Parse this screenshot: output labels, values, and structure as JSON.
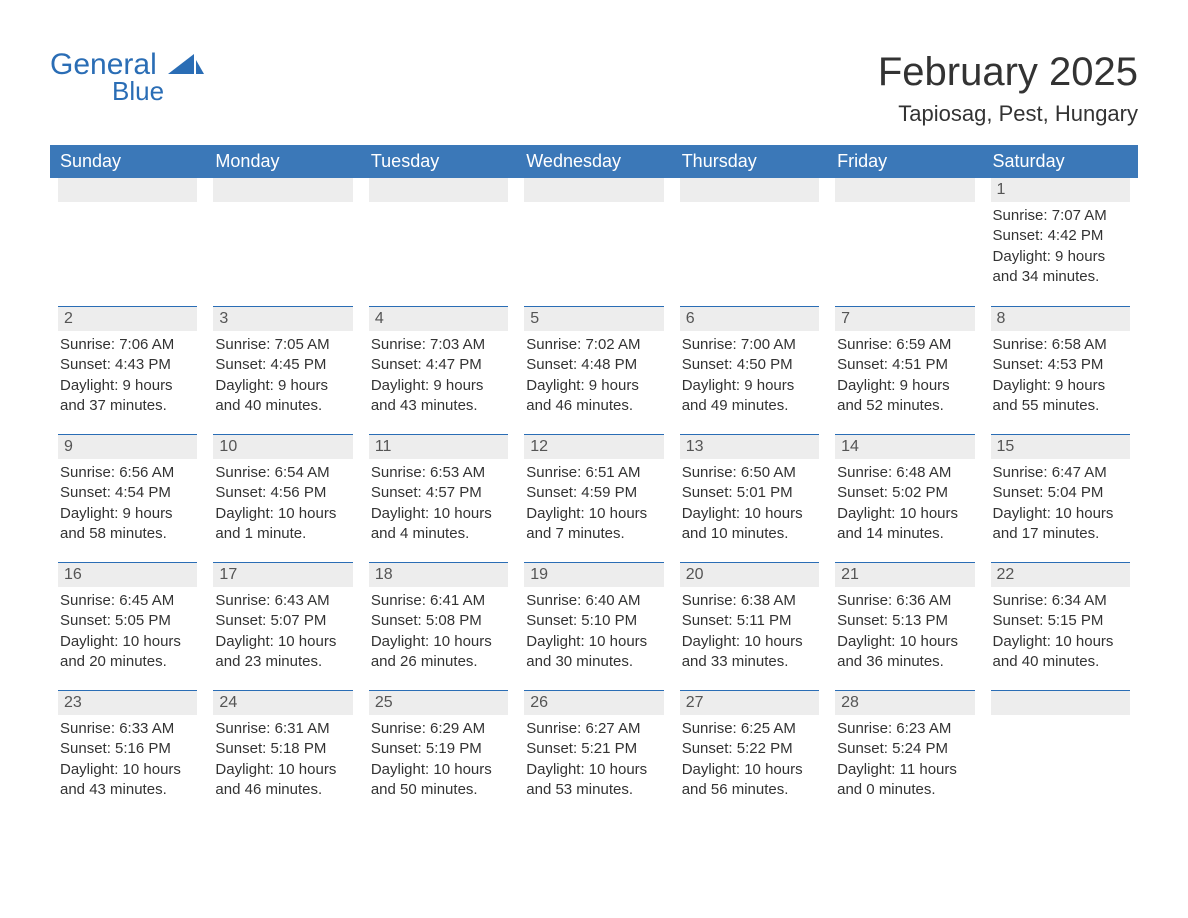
{
  "logo": {
    "text1": "General",
    "text2": "Blue",
    "sail_color": "#2a6db5"
  },
  "title": "February 2025",
  "location": "Tapiosag, Pest, Hungary",
  "colors": {
    "header_bg": "#3b78b8",
    "header_text": "#ffffff",
    "day_bar_bg": "#ededed",
    "day_bar_border": "#2a6db5",
    "text": "#333333",
    "background": "#ffffff"
  },
  "weekdays": [
    "Sunday",
    "Monday",
    "Tuesday",
    "Wednesday",
    "Thursday",
    "Friday",
    "Saturday"
  ],
  "leading_blanks": 6,
  "days": [
    {
      "n": 1,
      "sunrise": "7:07 AM",
      "sunset": "4:42 PM",
      "daylight": "9 hours and 34 minutes."
    },
    {
      "n": 2,
      "sunrise": "7:06 AM",
      "sunset": "4:43 PM",
      "daylight": "9 hours and 37 minutes."
    },
    {
      "n": 3,
      "sunrise": "7:05 AM",
      "sunset": "4:45 PM",
      "daylight": "9 hours and 40 minutes."
    },
    {
      "n": 4,
      "sunrise": "7:03 AM",
      "sunset": "4:47 PM",
      "daylight": "9 hours and 43 minutes."
    },
    {
      "n": 5,
      "sunrise": "7:02 AM",
      "sunset": "4:48 PM",
      "daylight": "9 hours and 46 minutes."
    },
    {
      "n": 6,
      "sunrise": "7:00 AM",
      "sunset": "4:50 PM",
      "daylight": "9 hours and 49 minutes."
    },
    {
      "n": 7,
      "sunrise": "6:59 AM",
      "sunset": "4:51 PM",
      "daylight": "9 hours and 52 minutes."
    },
    {
      "n": 8,
      "sunrise": "6:58 AM",
      "sunset": "4:53 PM",
      "daylight": "9 hours and 55 minutes."
    },
    {
      "n": 9,
      "sunrise": "6:56 AM",
      "sunset": "4:54 PM",
      "daylight": "9 hours and 58 minutes."
    },
    {
      "n": 10,
      "sunrise": "6:54 AM",
      "sunset": "4:56 PM",
      "daylight": "10 hours and 1 minute."
    },
    {
      "n": 11,
      "sunrise": "6:53 AM",
      "sunset": "4:57 PM",
      "daylight": "10 hours and 4 minutes."
    },
    {
      "n": 12,
      "sunrise": "6:51 AM",
      "sunset": "4:59 PM",
      "daylight": "10 hours and 7 minutes."
    },
    {
      "n": 13,
      "sunrise": "6:50 AM",
      "sunset": "5:01 PM",
      "daylight": "10 hours and 10 minutes."
    },
    {
      "n": 14,
      "sunrise": "6:48 AM",
      "sunset": "5:02 PM",
      "daylight": "10 hours and 14 minutes."
    },
    {
      "n": 15,
      "sunrise": "6:47 AM",
      "sunset": "5:04 PM",
      "daylight": "10 hours and 17 minutes."
    },
    {
      "n": 16,
      "sunrise": "6:45 AM",
      "sunset": "5:05 PM",
      "daylight": "10 hours and 20 minutes."
    },
    {
      "n": 17,
      "sunrise": "6:43 AM",
      "sunset": "5:07 PM",
      "daylight": "10 hours and 23 minutes."
    },
    {
      "n": 18,
      "sunrise": "6:41 AM",
      "sunset": "5:08 PM",
      "daylight": "10 hours and 26 minutes."
    },
    {
      "n": 19,
      "sunrise": "6:40 AM",
      "sunset": "5:10 PM",
      "daylight": "10 hours and 30 minutes."
    },
    {
      "n": 20,
      "sunrise": "6:38 AM",
      "sunset": "5:11 PM",
      "daylight": "10 hours and 33 minutes."
    },
    {
      "n": 21,
      "sunrise": "6:36 AM",
      "sunset": "5:13 PM",
      "daylight": "10 hours and 36 minutes."
    },
    {
      "n": 22,
      "sunrise": "6:34 AM",
      "sunset": "5:15 PM",
      "daylight": "10 hours and 40 minutes."
    },
    {
      "n": 23,
      "sunrise": "6:33 AM",
      "sunset": "5:16 PM",
      "daylight": "10 hours and 43 minutes."
    },
    {
      "n": 24,
      "sunrise": "6:31 AM",
      "sunset": "5:18 PM",
      "daylight": "10 hours and 46 minutes."
    },
    {
      "n": 25,
      "sunrise": "6:29 AM",
      "sunset": "5:19 PM",
      "daylight": "10 hours and 50 minutes."
    },
    {
      "n": 26,
      "sunrise": "6:27 AM",
      "sunset": "5:21 PM",
      "daylight": "10 hours and 53 minutes."
    },
    {
      "n": 27,
      "sunrise": "6:25 AM",
      "sunset": "5:22 PM",
      "daylight": "10 hours and 56 minutes."
    },
    {
      "n": 28,
      "sunrise": "6:23 AM",
      "sunset": "5:24 PM",
      "daylight": "11 hours and 0 minutes."
    }
  ],
  "labels": {
    "sunrise": "Sunrise:",
    "sunset": "Sunset:",
    "daylight": "Daylight:"
  }
}
